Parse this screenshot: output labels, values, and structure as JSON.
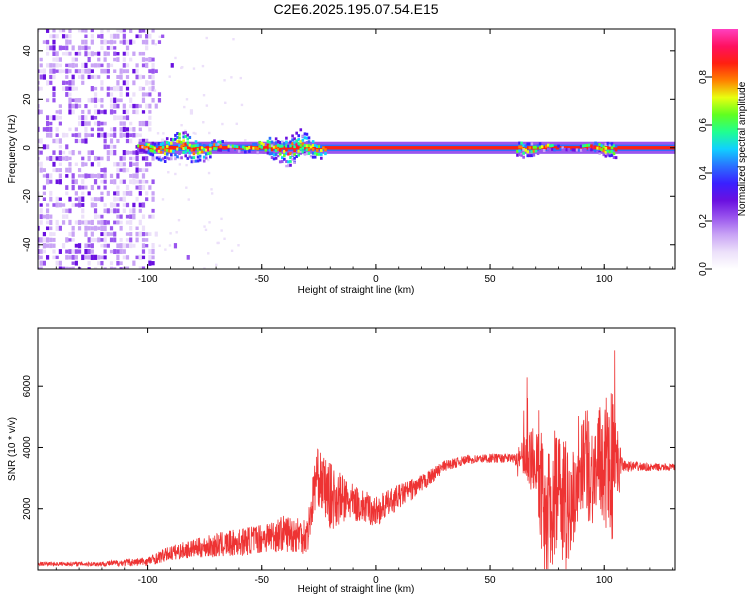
{
  "title": "C2E6.2025.195.07.54.E15",
  "colors": {
    "snr_line": "#ee3333",
    "colormap": [
      "#ffffff",
      "#ece0fa",
      "#c9a4f5",
      "#9a55ee",
      "#6a10e0",
      "#3a20ff",
      "#2a70ff",
      "#10d0ff",
      "#20ff90",
      "#60ff20",
      "#e8ff10",
      "#ff8000",
      "#ff2010",
      "#ff1060",
      "#ff40c0"
    ]
  },
  "chart_data": [
    {
      "type": "heatmap",
      "title": "C2E6.2025.195.07.54.E15",
      "xlabel": "Height of straight line (km)",
      "ylabel": "Frequency (Hz)",
      "xlim": [
        -148,
        131
      ],
      "ylim": [
        -50,
        49
      ],
      "xticks": [
        -100,
        -50,
        0,
        50,
        100
      ],
      "yticks": [
        -40,
        -20,
        0,
        20,
        40
      ],
      "colorbar": {
        "label": "Normalized spectral amplitude",
        "range": [
          0,
          1
        ],
        "ticks": [
          0.0,
          0.2,
          0.4,
          0.6,
          0.8
        ]
      },
      "features": {
        "noise_region_x": [
          -148,
          -97
        ],
        "carrier_start_x": -104,
        "carrier_freq": 0,
        "wobble_regions": [
          {
            "x": [
              -104,
              -22
            ],
            "amplitude_hz": 5
          },
          {
            "x": [
              62,
              106
            ],
            "amplitude_hz": 3
          }
        ]
      }
    },
    {
      "type": "line",
      "xlabel": "Height of straight line (km)",
      "ylabel": "SNR (10 * v/v)",
      "xlim": [
        -148,
        131
      ],
      "ylim": [
        0,
        7900
      ],
      "xticks": [
        -100,
        -50,
        0,
        50,
        100
      ],
      "yticks": [
        2000,
        4000,
        6000
      ],
      "series": [
        {
          "x": [
            -148,
            -120,
            -100,
            -90,
            -80,
            -70,
            -60,
            -50,
            -40,
            -30,
            -26,
            -20,
            -10,
            0,
            10,
            20,
            30,
            40,
            50,
            60,
            64,
            70,
            75,
            80,
            85,
            90,
            95,
            100,
            103,
            108,
            120,
            131
          ],
          "values": [
            200,
            200,
            280,
            550,
            700,
            800,
            900,
            1050,
            1200,
            1150,
            3100,
            2400,
            2200,
            1900,
            2400,
            2800,
            3400,
            3600,
            3650,
            3650,
            3700,
            3800,
            1300,
            3100,
            1900,
            3800,
            3100,
            3600,
            3400,
            3400,
            3350,
            3350
          ],
          "noise": [
            60,
            80,
            150,
            250,
            300,
            400,
            450,
            500,
            600,
            650,
            900,
            1100,
            600,
            500,
            400,
            300,
            180,
            150,
            150,
            150,
            500,
            1500,
            2400,
            2000,
            1800,
            1900,
            1700,
            2100,
            2800,
            200,
            120,
            120
          ]
        }
      ]
    }
  ]
}
